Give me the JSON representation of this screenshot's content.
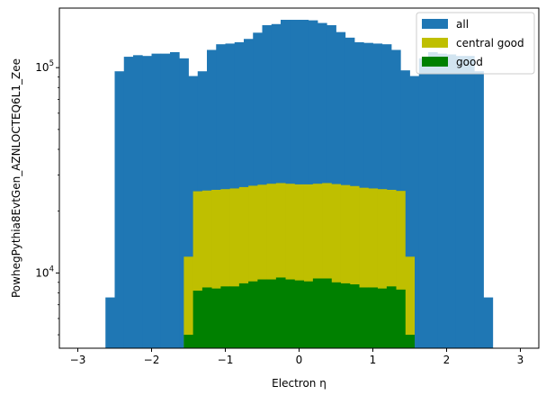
{
  "chart_data": {
    "type": "histogram",
    "xlabel": "Electron η",
    "ylabel": "PowhegPythia8EvtGen_AZNLOCTEQ6L1_Zee",
    "xlim": [
      -3.25,
      3.25
    ],
    "ylim": [
      4300,
      195000
    ],
    "yscale": "log",
    "grid": false,
    "legend_position": "top-right",
    "x_ticks": [
      -3,
      -2,
      -1,
      0,
      1,
      2,
      3
    ],
    "x_tick_labels": [
      "−3",
      "−2",
      "−1",
      "0",
      "1",
      "2",
      "3"
    ],
    "y_ticks": [
      10000,
      100000
    ],
    "bin_edges": [
      -2.625,
      -2.5,
      -2.375,
      -2.25,
      -2.125,
      -2.0,
      -1.875,
      -1.75,
      -1.625,
      -1.5,
      -1.375,
      -1.25,
      -1.125,
      -1.0,
      -0.875,
      -0.75,
      -0.625,
      -0.5,
      -0.375,
      -0.25,
      -0.125,
      0.0,
      0.125,
      0.25,
      0.375,
      0.5,
      0.625,
      0.75,
      0.875,
      1.0,
      1.125,
      1.25,
      1.375,
      1.5,
      1.625,
      1.75,
      1.875,
      2.0,
      2.125,
      2.25,
      2.375,
      2.5,
      2.625
    ],
    "series": [
      {
        "name": "all",
        "color": "#1f77b4",
        "edges": [
          -2.625,
          -2.5,
          -2.375,
          -2.25,
          -2.125,
          -2.0,
          -1.875,
          -1.75,
          -1.625,
          -1.5,
          -1.375,
          -1.25,
          -1.125,
          -1.0,
          -0.875,
          -0.75,
          -0.625,
          -0.5,
          -0.375,
          -0.25,
          -0.125,
          0.0,
          0.125,
          0.25,
          0.375,
          0.5,
          0.625,
          0.75,
          0.875,
          1.0,
          1.125,
          1.25,
          1.375,
          1.5,
          1.625,
          1.75,
          1.875,
          2.0,
          2.125,
          2.25,
          2.375,
          2.5,
          2.625
        ],
        "values": [
          7600,
          96000,
          113000,
          115000,
          114000,
          117000,
          117000,
          119000,
          111000,
          91000,
          96000,
          122000,
          130000,
          131000,
          133000,
          138000,
          148000,
          161000,
          163000,
          171000,
          171000,
          171000,
          170000,
          165000,
          161000,
          149000,
          140000,
          133000,
          132000,
          131000,
          130000,
          122000,
          97000,
          91000,
          111000,
          119000,
          117000,
          116000,
          114000,
          114000,
          96000,
          7600
        ]
      },
      {
        "name": "central good",
        "color": "#bfbf00",
        "edges": [
          -1.5625,
          -1.4375,
          -1.3125,
          -1.1875,
          -1.0625,
          -0.9375,
          -0.8125,
          -0.6875,
          -0.5625,
          -0.4375,
          -0.3125,
          -0.1875,
          -0.0625,
          0.0625,
          0.1875,
          0.3125,
          0.4375,
          0.5625,
          0.6875,
          0.8125,
          0.9375,
          1.0625,
          1.1875,
          1.3125,
          1.4375,
          1.5625
        ],
        "values": [
          12000,
          25000,
          25200,
          25400,
          25600,
          25800,
          26200,
          26600,
          26900,
          27200,
          27400,
          27200,
          27000,
          27000,
          27200,
          27400,
          27100,
          26800,
          26500,
          26000,
          25800,
          25600,
          25400,
          25100,
          12000
        ]
      },
      {
        "name": "good",
        "color": "#008000",
        "edges": [
          -1.5625,
          -1.4375,
          -1.3125,
          -1.1875,
          -1.0625,
          -0.9375,
          -0.8125,
          -0.6875,
          -0.5625,
          -0.4375,
          -0.3125,
          -0.1875,
          -0.0625,
          0.0625,
          0.1875,
          0.3125,
          0.4375,
          0.5625,
          0.6875,
          0.8125,
          0.9375,
          1.0625,
          1.1875,
          1.3125,
          1.4375,
          1.5625
        ],
        "values": [
          5000,
          8200,
          8500,
          8400,
          8600,
          8600,
          8900,
          9100,
          9300,
          9300,
          9500,
          9300,
          9200,
          9100,
          9400,
          9400,
          9000,
          8900,
          8800,
          8500,
          8500,
          8400,
          8600,
          8300,
          5000
        ]
      }
    ]
  }
}
